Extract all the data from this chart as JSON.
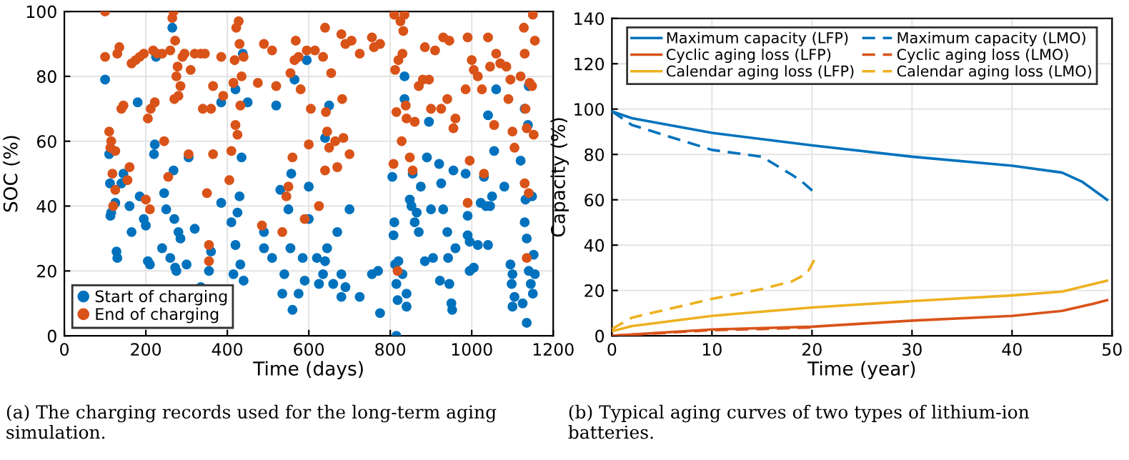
{
  "chart_data": [
    {
      "type": "scatter",
      "xlabel": "Time (days)",
      "ylabel": "SOC (%)",
      "xlim": [
        0,
        1200
      ],
      "xticks": [
        0,
        200,
        400,
        600,
        800,
        1000,
        1200
      ],
      "ylim": [
        0,
        100
      ],
      "yticks": [
        0,
        20,
        40,
        60,
        80,
        100
      ],
      "grid": true,
      "legend": "bottom left",
      "marker": "circle",
      "annotations": [
        "(a) The charging records used for the long-term aging simulation."
      ],
      "series": [
        {
          "name": "Start of charging",
          "color": "#0072bd",
          "x": [
            100,
            110,
            112,
            113,
            115,
            125,
            128,
            130,
            140,
            145,
            160,
            165,
            180,
            185,
            195,
            200,
            205,
            210,
            220,
            222,
            225,
            240,
            245,
            250,
            260,
            265,
            268,
            270,
            272,
            275,
            280,
            285,
            300,
            305,
            320,
            335,
            355,
            360,
            385,
            385,
            410,
            415,
            420,
            420,
            425,
            430,
            432,
            435,
            440,
            438,
            450,
            490,
            490,
            510,
            520,
            530,
            535,
            540,
            550,
            555,
            557,
            560,
            565,
            575,
            585,
            590,
            595,
            600,
            600,
            620,
            625,
            635,
            640,
            640,
            645,
            650,
            660,
            670,
            680,
            680,
            690,
            700,
            725,
            755,
            770,
            775,
            805,
            808,
            810,
            812,
            815,
            815,
            818,
            820,
            830,
            835,
            835,
            840,
            840,
            848,
            852,
            855,
            860,
            865,
            870,
            875,
            885,
            890,
            895,
            900,
            905,
            920,
            922,
            925,
            930,
            940,
            942,
            945,
            950,
            952,
            955,
            960,
            985,
            990,
            990,
            995,
            995,
            1005,
            1015,
            1022,
            1030,
            1035,
            1040,
            1040,
            1045,
            1050,
            1055,
            1060,
            1080,
            1095,
            1098,
            1100,
            1100,
            1105,
            1120,
            1125,
            1130,
            1130,
            1132,
            1135,
            1135,
            1138,
            1140,
            1140,
            1145,
            1148,
            1150,
            1152,
            1155
          ],
          "values": [
            79,
            56,
            47,
            37,
            38,
            41,
            26,
            24,
            47,
            50,
            40,
            32,
            72,
            43,
            36,
            34,
            23,
            22,
            56,
            59,
            86,
            27,
            44,
            39,
            24,
            95,
            51,
            36,
            21,
            20,
            32,
            30,
            22,
            55,
            33,
            15,
            20,
            26,
            72,
            41,
            35,
            19,
            76,
            28,
            38,
            43,
            22,
            55,
            17,
            87,
            72,
            32,
            27,
            24,
            71,
            45,
            13,
            19,
            39,
            27,
            50,
            8,
            79,
            13,
            24,
            17,
            85,
            46,
            36,
            24,
            16,
            19,
            23,
            61,
            27,
            71,
            16,
            32,
            19,
            12,
            15,
            39,
            12,
            19,
            20,
            7,
            49,
            31,
            35,
            22,
            16,
            0,
            11,
            23,
            19,
            80,
            73,
            9,
            13,
            42,
            40,
            50,
            35,
            38,
            32,
            46,
            23,
            55,
            66,
            39,
            24,
            53,
            17,
            47,
            39,
            32,
            24,
            16,
            10,
            8,
            51,
            27,
            50,
            37,
            31,
            29,
            20,
            21,
            28,
            41,
            49,
            40,
            28,
            68,
            40,
            43,
            57,
            76,
            46,
            22,
            16,
            9,
            19,
            12,
            54,
            10,
            35,
            70,
            42,
            30,
            4,
            65,
            20,
            77,
            16,
            43,
            13,
            25,
            19
          ]
        },
        {
          "name": "End of charging",
          "color": "#d95319",
          "x": [
            100,
            100,
            110,
            113,
            115,
            118,
            120,
            125,
            125,
            130,
            135,
            140,
            145,
            155,
            160,
            165,
            175,
            185,
            195,
            200,
            205,
            210,
            212,
            218,
            222,
            228,
            240,
            245,
            255,
            260,
            265,
            268,
            270,
            272,
            275,
            278,
            280,
            285,
            290,
            295,
            305,
            310,
            320,
            335,
            340,
            345,
            350,
            355,
            355,
            360,
            365,
            365,
            385,
            390,
            405,
            410,
            415,
            418,
            420,
            422,
            425,
            428,
            430,
            432,
            435,
            440,
            475,
            485,
            490,
            510,
            520,
            535,
            545,
            550,
            555,
            560,
            565,
            568,
            575,
            580,
            590,
            595,
            600,
            605,
            615,
            625,
            635,
            640,
            640,
            642,
            645,
            650,
            655,
            665,
            670,
            680,
            682,
            685,
            690,
            700,
            705,
            725,
            755,
            760,
            775,
            808,
            810,
            812,
            815,
            818,
            820,
            825,
            828,
            830,
            832,
            835,
            838,
            840,
            848,
            855,
            860,
            870,
            880,
            885,
            895,
            900,
            910,
            925,
            930,
            940,
            945,
            955,
            960,
            985,
            990,
            990,
            995,
            1000,
            1005,
            1015,
            1025,
            1030,
            1040,
            1045,
            1055,
            1060,
            1070,
            1085,
            1090,
            1095,
            1100,
            1105,
            1120,
            1128,
            1130,
            1130,
            1132,
            1135,
            1135,
            1140,
            1142,
            1148,
            1150,
            1152,
            1155
          ],
          "values": [
            100,
            86,
            63,
            58,
            60,
            50,
            40,
            57,
            45,
            87,
            89,
            70,
            71,
            48,
            52,
            84,
            85,
            86,
            87,
            42,
            67,
            39,
            70,
            88,
            72,
            87,
            87,
            60,
            49,
            88,
            98,
            100,
            73,
            91,
            80,
            83,
            74,
            77,
            86,
            87,
            56,
            82,
            87,
            87,
            70,
            87,
            44,
            28,
            23,
            70,
            56,
            77,
            86,
            74,
            48,
            57,
            78,
            85,
            65,
            95,
            62,
            97,
            90,
            71,
            80,
            86,
            78,
            34,
            90,
            88,
            77,
            32,
            43,
            46,
            81,
            55,
            85,
            91,
            86,
            76,
            36,
            88,
            59,
            70,
            88,
            40,
            86,
            95,
            51,
            69,
            63,
            58,
            81,
            60,
            52,
            93,
            73,
            61,
            90,
            56,
            91,
            87,
            92,
            89,
            90,
            53,
            99,
            82,
            69,
            20,
            85,
            97,
            60,
            87,
            94,
            99,
            71,
            67,
            55,
            51,
            66,
            77,
            79,
            89,
            79,
            70,
            88,
            70,
            92,
            73,
            91,
            64,
            67,
            76,
            92,
            41,
            54,
            85,
            82,
            80,
            76,
            50,
            92,
            83,
            65,
            87,
            84,
            83,
            73,
            79,
            63,
            58,
            80,
            95,
            87,
            47,
            70,
            64,
            24,
            44,
            78,
            77,
            99,
            62,
            91
          ]
        }
      ]
    },
    {
      "type": "line",
      "xlabel": "Time (year)",
      "ylabel": "Capacity (%)",
      "xlim": [
        0,
        50
      ],
      "xticks": [
        0,
        10,
        20,
        30,
        40,
        50
      ],
      "ylim": [
        0,
        140
      ],
      "yticks": [
        0,
        20,
        40,
        60,
        80,
        100,
        120,
        140
      ],
      "grid": true,
      "legend": "top",
      "annotations": [
        "(b) Typical aging curves of two types of lithium-ion batteries."
      ],
      "series": [
        {
          "name": "Maximum capacity (LFP)",
          "color": "#0072bd",
          "line_style": "solid",
          "x": [
            0,
            2,
            10,
            20,
            30,
            40,
            45,
            47,
            49.5
          ],
          "values": [
            99,
            96,
            89.5,
            84,
            79,
            75,
            72,
            68,
            60
          ]
        },
        {
          "name": "Cyclic aging loss (LFP)",
          "color": "#d95319",
          "line_style": "solid",
          "x": [
            0,
            10,
            20,
            30,
            40,
            45,
            48,
            49.5
          ],
          "values": [
            0,
            2.8,
            4,
            6.7,
            8.8,
            11,
            14,
            15.7
          ]
        },
        {
          "name": "Calendar aging loss (LFP)",
          "color": "#edb120",
          "line_style": "solid",
          "x": [
            0,
            2,
            10,
            20,
            30,
            40,
            45,
            49.5
          ],
          "values": [
            2,
            4.3,
            8.8,
            12.5,
            15.3,
            17.8,
            19.5,
            24.3
          ]
        },
        {
          "name": "Maximum capacity (LMO)",
          "color": "#0072bd",
          "line_style": "dashed",
          "x": [
            0,
            2,
            10,
            15,
            18,
            19,
            20.3
          ],
          "values": [
            99,
            93,
            82,
            79,
            71,
            68,
            63
          ]
        },
        {
          "name": "Cyclic aging loss (LMO)",
          "color": "#d95319",
          "line_style": "dashed",
          "x": [
            0,
            10,
            15,
            20
          ],
          "values": [
            0,
            2.5,
            3,
            3.7
          ]
        },
        {
          "name": "Calendar aging loss (LMO)",
          "color": "#edb120",
          "line_style": "dashed",
          "x": [
            0,
            2,
            10,
            15,
            18,
            19.5,
            20.3
          ],
          "values": [
            3,
            8,
            16.3,
            20.6,
            24,
            27.5,
            34
          ]
        }
      ]
    }
  ]
}
